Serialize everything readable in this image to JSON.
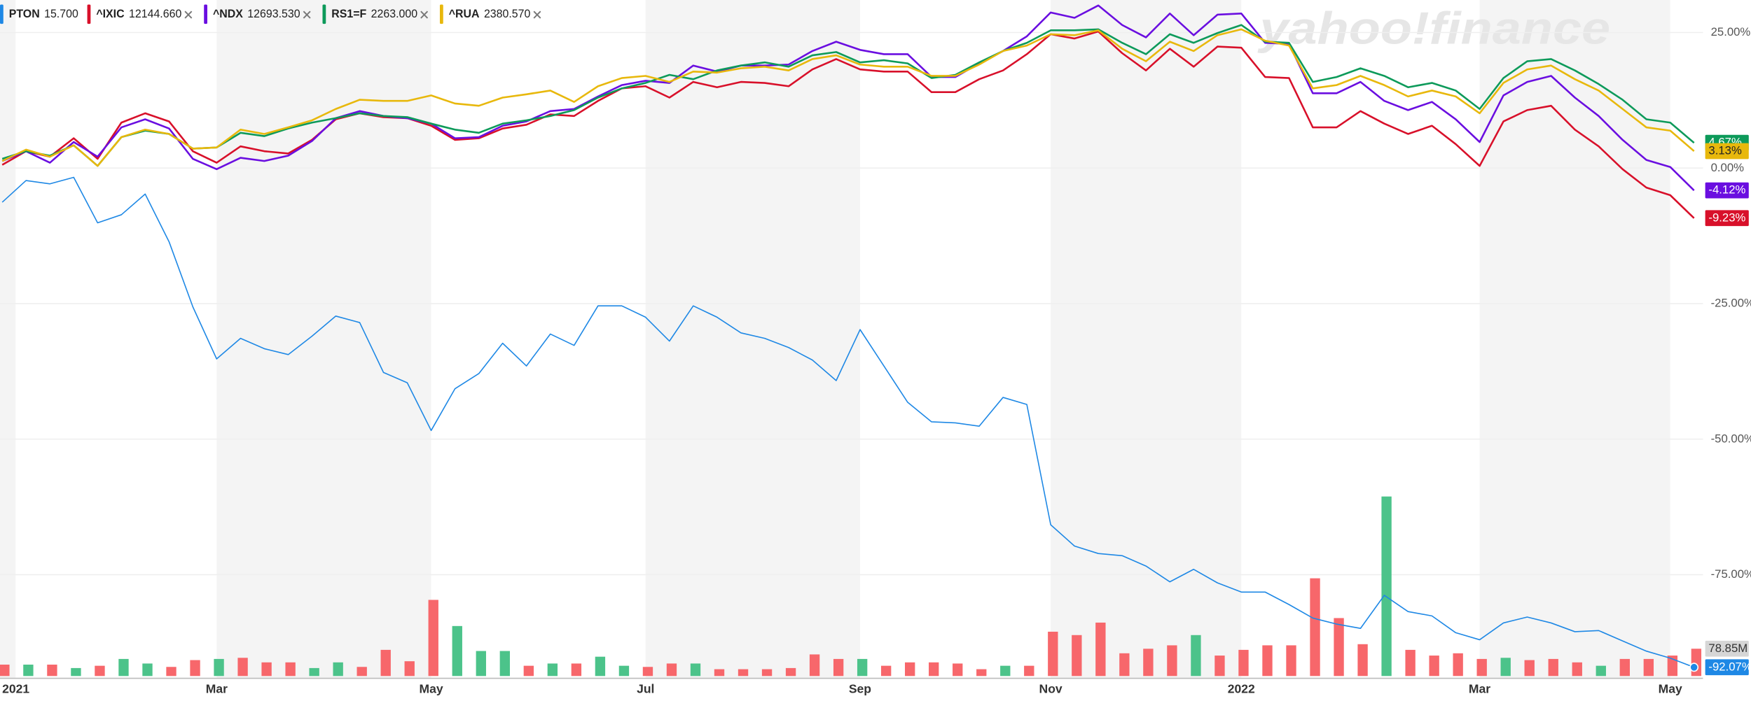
{
  "chart_data": {
    "type": "line",
    "watermark": "yahoo!finance",
    "categories": [
      "2021",
      null,
      null,
      null,
      null,
      null,
      null,
      null,
      null,
      "Mar",
      null,
      null,
      null,
      null,
      null,
      null,
      null,
      null,
      "May",
      null,
      null,
      null,
      null,
      null,
      null,
      null,
      null,
      "Jul",
      null,
      null,
      null,
      null,
      null,
      null,
      null,
      null,
      "Sep",
      null,
      null,
      null,
      null,
      null,
      null,
      null,
      "Nov",
      null,
      null,
      null,
      null,
      null,
      null,
      null,
      "2022",
      null,
      null,
      null,
      null,
      null,
      null,
      null,
      null,
      null,
      "Mar",
      null,
      null,
      null,
      null,
      null,
      null,
      null,
      "May",
      null
    ],
    "ylim": [
      -94.1,
      31.0
    ],
    "yticks": [
      {
        "value": 25,
        "label": "25.00%"
      },
      {
        "value": 0,
        "label": "0.00%"
      },
      {
        "value": -25,
        "label": "-25.00%"
      },
      {
        "value": -50,
        "label": "-50.00%"
      },
      {
        "value": -75,
        "label": "-75.00%"
      }
    ],
    "grid": true,
    "series": [
      {
        "name": "PTON",
        "price": "15.700",
        "color": "#1e88e5",
        "values": [
          -6.3,
          -2.3,
          -2.9,
          -1.7,
          -10.1,
          -8.6,
          -4.8,
          -13.6,
          -25.6,
          -35.2,
          -31.4,
          -33.3,
          -34.4,
          -31.0,
          -27.3,
          -28.5,
          -37.7,
          -39.6,
          -48.4,
          -40.7,
          -37.9,
          -32.3,
          -36.5,
          -30.6,
          -32.7,
          -25.4,
          -25.4,
          -27.5,
          -31.9,
          -25.4,
          -27.5,
          -30.4,
          -31.4,
          -33.1,
          -35.4,
          -39.2,
          -29.8,
          -36.5,
          -43.2,
          -46.8,
          -47.0,
          -47.6,
          -42.3,
          -43.6,
          -65.8,
          -69.7,
          -71.1,
          -71.5,
          -73.4,
          -76.3,
          -74.0,
          -76.5,
          -78.2,
          -78.2,
          -80.5,
          -83.0,
          -84.1,
          -84.9,
          -78.8,
          -81.8,
          -82.6,
          -85.7,
          -87.0,
          -83.9,
          -82.8,
          -83.9,
          -85.5,
          -85.3,
          -87.2,
          -89.1,
          -90.4,
          -92.07
        ],
        "value_labels": [
          null,
          null,
          null,
          null,
          null,
          null,
          null,
          null,
          null,
          null,
          null,
          null,
          null,
          null,
          null,
          null,
          null,
          null,
          null,
          null,
          null,
          null,
          null,
          null,
          null,
          null,
          null,
          null,
          null,
          null,
          null,
          null,
          null,
          null,
          null,
          null,
          null,
          null,
          null,
          null,
          null,
          null,
          null,
          null,
          null,
          null,
          null,
          null,
          null,
          null,
          null,
          null,
          null,
          null,
          null,
          null,
          null,
          null,
          null,
          null,
          null,
          null,
          null,
          null,
          null,
          null,
          null,
          null,
          null,
          null,
          null,
          "-92.07%"
        ]
      },
      {
        "name": "^IXIC",
        "price": "12144.660",
        "color": "#d8102a",
        "values": [
          0.6,
          3.1,
          2.1,
          5.5,
          1.7,
          8.4,
          10.1,
          8.6,
          3.1,
          1.0,
          4.0,
          3.1,
          2.7,
          5.2,
          9.0,
          10.1,
          9.4,
          9.2,
          7.8,
          5.2,
          5.5,
          7.3,
          8.0,
          9.9,
          9.6,
          12.4,
          14.7,
          15.1,
          13.0,
          15.9,
          14.9,
          15.9,
          15.7,
          15.1,
          18.2,
          20.1,
          18.2,
          17.8,
          17.8,
          14.0,
          14.0,
          16.4,
          18.0,
          21.0,
          24.7,
          23.9,
          25.2,
          21.2,
          18.0,
          22.0,
          18.7,
          22.4,
          22.2,
          16.8,
          16.6,
          7.5,
          7.5,
          10.5,
          8.2,
          6.3,
          7.8,
          4.4,
          0.4,
          8.6,
          10.7,
          11.5,
          7.1,
          4.0,
          -0.2,
          -3.6,
          -5.0,
          -9.23
        ],
        "value_labels": [
          null,
          null,
          null,
          null,
          null,
          null,
          null,
          null,
          null,
          null,
          null,
          null,
          null,
          null,
          null,
          null,
          null,
          null,
          null,
          null,
          null,
          null,
          null,
          null,
          null,
          null,
          null,
          null,
          null,
          null,
          null,
          null,
          null,
          null,
          null,
          null,
          null,
          null,
          null,
          null,
          null,
          null,
          null,
          null,
          null,
          null,
          null,
          null,
          null,
          null,
          null,
          null,
          null,
          null,
          null,
          null,
          null,
          null,
          null,
          null,
          null,
          null,
          null,
          null,
          null,
          null,
          null,
          null,
          null,
          null,
          null,
          "-9.23%"
        ]
      },
      {
        "name": "^NDX",
        "price": "12693.530",
        "color": "#6a0ee0",
        "values": [
          1.3,
          3.1,
          1.0,
          4.8,
          2.1,
          7.5,
          9.0,
          7.3,
          1.7,
          -0.2,
          1.9,
          1.3,
          2.3,
          5.0,
          9.2,
          10.5,
          9.6,
          9.2,
          8.2,
          5.5,
          5.7,
          7.8,
          8.6,
          10.5,
          10.9,
          13.2,
          15.3,
          16.1,
          15.7,
          18.9,
          17.8,
          18.9,
          18.9,
          19.1,
          21.6,
          23.3,
          21.8,
          21.0,
          21.0,
          16.8,
          16.8,
          19.3,
          21.6,
          24.3,
          28.7,
          27.7,
          30.0,
          26.4,
          24.1,
          28.5,
          24.5,
          28.3,
          28.5,
          23.1,
          22.9,
          13.8,
          13.8,
          15.9,
          12.4,
          10.7,
          12.2,
          9.0,
          4.8,
          13.4,
          15.9,
          17.0,
          13.0,
          9.6,
          5.2,
          1.5,
          0.2,
          -4.12
        ],
        "value_labels": [
          null,
          null,
          null,
          null,
          null,
          null,
          null,
          null,
          null,
          null,
          null,
          null,
          null,
          null,
          null,
          null,
          null,
          null,
          null,
          null,
          null,
          null,
          null,
          null,
          null,
          null,
          null,
          null,
          null,
          null,
          null,
          null,
          null,
          null,
          null,
          null,
          null,
          null,
          null,
          null,
          null,
          null,
          null,
          null,
          null,
          null,
          null,
          null,
          null,
          null,
          null,
          null,
          null,
          null,
          null,
          null,
          null,
          null,
          null,
          null,
          null,
          null,
          null,
          null,
          null,
          null,
          null,
          null,
          null,
          null,
          null,
          "-4.12%"
        ]
      },
      {
        "name": "RS1=F",
        "price": "2263.000",
        "color": "#0d9a5a",
        "values": [
          1.7,
          3.1,
          2.3,
          4.2,
          0.4,
          5.7,
          6.9,
          6.3,
          3.6,
          3.8,
          6.5,
          5.9,
          7.3,
          8.4,
          9.2,
          10.1,
          9.6,
          9.4,
          8.2,
          7.1,
          6.5,
          8.2,
          8.8,
          9.6,
          10.7,
          13.0,
          14.7,
          15.7,
          17.2,
          16.4,
          18.0,
          18.9,
          19.5,
          18.7,
          20.8,
          21.4,
          19.5,
          19.9,
          19.3,
          16.6,
          17.2,
          19.5,
          21.6,
          23.1,
          25.4,
          25.4,
          25.6,
          23.1,
          21.0,
          24.7,
          23.1,
          24.9,
          26.4,
          23.3,
          23.1,
          15.9,
          16.8,
          18.4,
          17.0,
          14.9,
          15.7,
          14.3,
          10.9,
          16.6,
          19.7,
          20.1,
          18.0,
          15.5,
          12.6,
          9.0,
          8.4,
          4.67
        ],
        "value_labels": [
          null,
          null,
          null,
          null,
          null,
          null,
          null,
          null,
          null,
          null,
          null,
          null,
          null,
          null,
          null,
          null,
          null,
          null,
          null,
          null,
          null,
          null,
          null,
          null,
          null,
          null,
          null,
          null,
          null,
          null,
          null,
          null,
          null,
          null,
          null,
          null,
          null,
          null,
          null,
          null,
          null,
          null,
          null,
          null,
          null,
          null,
          null,
          null,
          null,
          null,
          null,
          null,
          null,
          null,
          null,
          null,
          null,
          null,
          null,
          null,
          null,
          null,
          null,
          null,
          null,
          null,
          null,
          null,
          null,
          null,
          null,
          "4.67%"
        ]
      },
      {
        "name": "^RUA",
        "price": "2380.570",
        "color": "#e8b80c",
        "values": [
          1.3,
          3.4,
          2.1,
          4.2,
          0.4,
          5.7,
          7.1,
          6.3,
          3.6,
          3.8,
          7.1,
          6.3,
          7.5,
          8.8,
          10.9,
          12.6,
          12.4,
          12.4,
          13.4,
          11.9,
          11.5,
          13.0,
          13.6,
          14.3,
          12.2,
          15.1,
          16.6,
          17.0,
          15.9,
          17.8,
          17.6,
          18.4,
          18.7,
          18.0,
          20.1,
          20.8,
          19.1,
          18.7,
          18.7,
          17.0,
          17.0,
          19.1,
          21.6,
          22.6,
          24.7,
          24.5,
          25.4,
          22.0,
          19.7,
          23.3,
          21.6,
          24.5,
          25.6,
          23.5,
          22.6,
          14.7,
          15.3,
          17.0,
          15.3,
          13.2,
          14.3,
          13.2,
          10.1,
          15.7,
          18.2,
          18.9,
          16.4,
          14.3,
          10.9,
          7.5,
          6.9,
          3.13
        ],
        "value_labels": [
          null,
          null,
          null,
          null,
          null,
          null,
          null,
          null,
          null,
          null,
          null,
          null,
          null,
          null,
          null,
          null,
          null,
          null,
          null,
          null,
          null,
          null,
          null,
          null,
          null,
          null,
          null,
          null,
          null,
          null,
          null,
          null,
          null,
          null,
          null,
          null,
          null,
          null,
          null,
          null,
          null,
          null,
          null,
          null,
          null,
          null,
          null,
          null,
          null,
          null,
          null,
          null,
          null,
          null,
          null,
          null,
          null,
          null,
          null,
          null,
          null,
          null,
          null,
          null,
          null,
          null,
          null,
          null,
          null,
          null,
          null,
          "3.13%"
        ]
      }
    ],
    "volume": {
      "values": [
        32.9,
        32.9,
        32.9,
        23.0,
        29.6,
        49.3,
        36.1,
        26.3,
        46.0,
        49.3,
        52.6,
        39.4,
        39.4,
        23.0,
        39.4,
        26.3,
        75.6,
        42.7,
        220.1,
        144.5,
        72.3,
        72.3,
        29.6,
        36.1,
        36.1,
        55.8,
        29.6,
        26.3,
        36.1,
        36.1,
        19.7,
        19.7,
        19.7,
        23.0,
        62.4,
        49.3,
        49.3,
        29.6,
        39.4,
        39.4,
        36.1,
        19.7,
        29.6,
        29.6,
        128.1,
        118.3,
        154.4,
        65.7,
        78.8,
        88.7,
        118.3,
        59.1,
        75.6,
        88.7,
        88.7,
        282.5,
        167.5,
        92.0,
        519.0,
        75.6,
        59.1,
        65.7,
        49.3,
        52.6,
        46.0,
        49.3,
        39.4,
        29.6,
        49.3,
        49.3,
        59.1,
        78.85
      ],
      "colors": [
        "#f7676b",
        "#4cc38a",
        "#f7676b",
        "#4cc38a",
        "#f7676b",
        "#4cc38a",
        "#4cc38a",
        "#f7676b",
        "#f7676b",
        "#4cc38a",
        "#f7676b",
        "#f7676b",
        "#f7676b",
        "#4cc38a",
        "#4cc38a",
        "#f7676b",
        "#f7676b",
        "#f7676b",
        "#f7676b",
        "#4cc38a",
        "#4cc38a",
        "#4cc38a",
        "#f7676b",
        "#4cc38a",
        "#f7676b",
        "#4cc38a",
        "#4cc38a",
        "#f7676b",
        "#f7676b",
        "#4cc38a",
        "#f7676b",
        "#f7676b",
        "#f7676b",
        "#f7676b",
        "#f7676b",
        "#f7676b",
        "#4cc38a",
        "#f7676b",
        "#f7676b",
        "#f7676b",
        "#f7676b",
        "#f7676b",
        "#4cc38a",
        "#f7676b",
        "#f7676b",
        "#f7676b",
        "#f7676b",
        "#f7676b",
        "#f7676b",
        "#f7676b",
        "#4cc38a",
        "#f7676b",
        "#f7676b",
        "#f7676b",
        "#f7676b",
        "#f7676b",
        "#f7676b",
        "#f7676b",
        "#4cc38a",
        "#f7676b",
        "#f7676b",
        "#f7676b",
        "#f7676b",
        "#4cc38a",
        "#f7676b",
        "#f7676b",
        "#f7676b",
        "#4cc38a",
        "#f7676b",
        "#f7676b",
        "#f7676b",
        "#f7676b"
      ],
      "value_labels": [
        null,
        null,
        null,
        null,
        null,
        null,
        null,
        null,
        null,
        null,
        null,
        null,
        null,
        null,
        null,
        null,
        null,
        null,
        null,
        null,
        null,
        null,
        null,
        null,
        null,
        null,
        null,
        null,
        null,
        null,
        null,
        null,
        null,
        null,
        null,
        null,
        null,
        null,
        null,
        null,
        null,
        null,
        null,
        null,
        null,
        null,
        null,
        null,
        null,
        null,
        null,
        null,
        null,
        null,
        null,
        null,
        null,
        null,
        null,
        null,
        null,
        null,
        null,
        null,
        null,
        null,
        null,
        null,
        null,
        null,
        null,
        "78.85M"
      ]
    }
  }
}
